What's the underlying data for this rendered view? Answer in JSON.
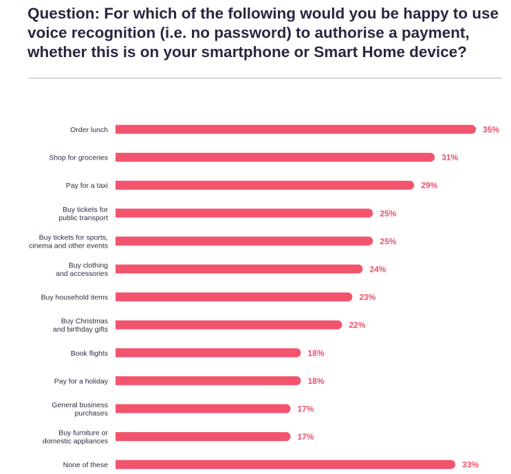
{
  "title": "Question: For which of the following would you be happy to use voice recognition (i.e. no password) to authorise a payment, whether this is on your smartphone or Smart Home device?",
  "bar_color": "#f2546e",
  "value_color": "#ee4f6b",
  "chart_data": {
    "type": "bar",
    "orientation": "horizontal",
    "categories": [
      [
        "Order lunch"
      ],
      [
        "Shop for groceries"
      ],
      [
        "Pay for a taxi"
      ],
      [
        "Buy tickets for",
        "public transport"
      ],
      [
        "Buy tickets for sports,",
        "cinema and other events"
      ],
      [
        "Buy clothing",
        "and accessories"
      ],
      [
        "Buy household items"
      ],
      [
        "Buy Christmas",
        "and birthday gifts"
      ],
      [
        "Book flights"
      ],
      [
        "Pay for a holiday"
      ],
      [
        "General business",
        "purchases"
      ],
      [
        "Buy furniture or",
        "domestic appliances"
      ],
      [
        "None of these"
      ]
    ],
    "values": [
      35,
      31,
      29,
      25,
      25,
      24,
      23,
      22,
      18,
      18,
      17,
      17,
      33
    ],
    "value_labels": [
      "35%",
      "31%",
      "29%",
      "25%",
      "25%",
      "24%",
      "23%",
      "22%",
      "18%",
      "18%",
      "17%",
      "17%",
      "33%"
    ],
    "unit": "%",
    "xlim": [
      0,
      35
    ],
    "grid": false,
    "legend": "none"
  }
}
